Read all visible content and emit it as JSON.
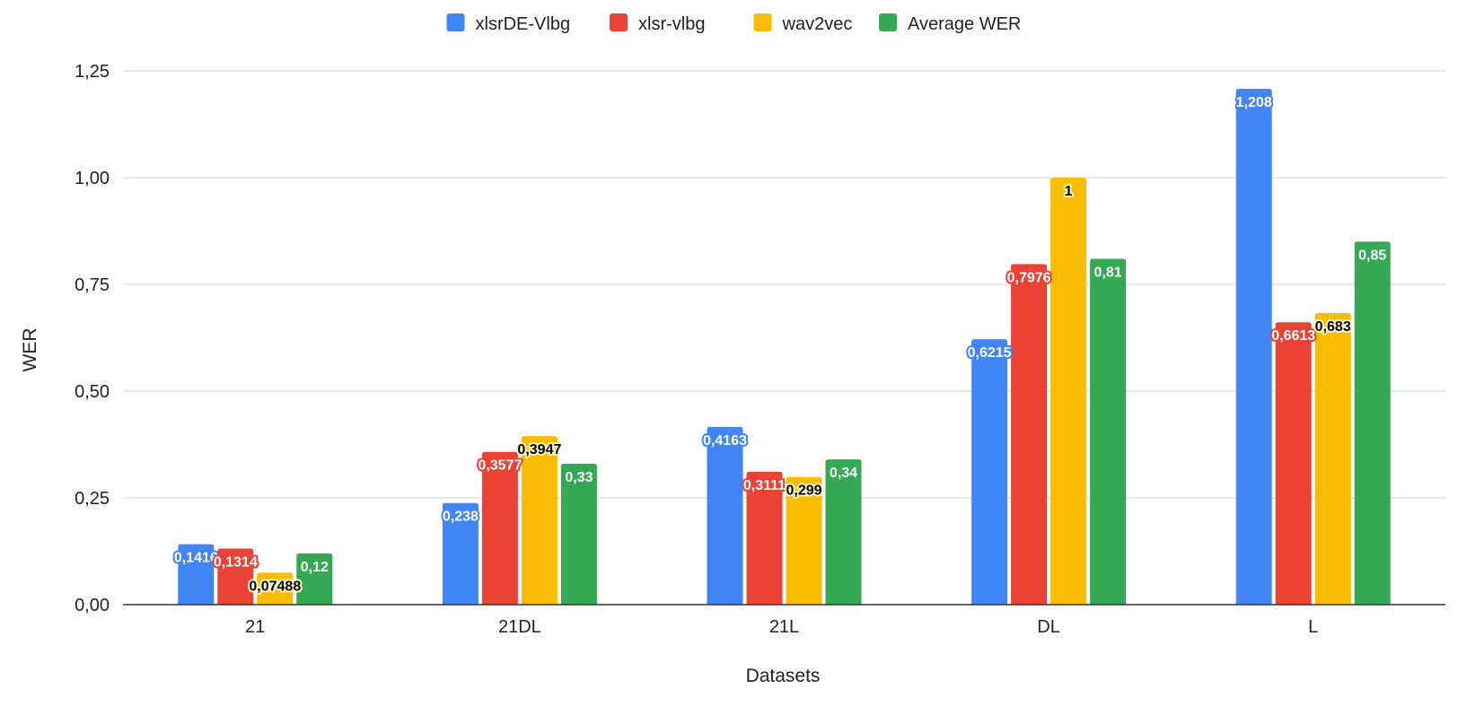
{
  "chart_data": {
    "type": "bar",
    "title": "",
    "xlabel": "Datasets",
    "ylabel": "WER",
    "ylim": [
      0,
      1.25
    ],
    "yticks": [
      0,
      0.25,
      0.5,
      0.75,
      1.0,
      1.25
    ],
    "ytick_labels": [
      "0,00",
      "0,25",
      "0,50",
      "0,75",
      "1,00",
      "1,25"
    ],
    "grid": true,
    "legend_position": "top-center",
    "categories": [
      "21",
      "21DL",
      "21L",
      "DL",
      "L"
    ],
    "series": [
      {
        "name": "xlsrDE-Vlbg",
        "color": "#4285f4",
        "label_color": "#ffffff",
        "values": [
          0.1416,
          0.238,
          0.4163,
          0.6215,
          1.208
        ],
        "labels": [
          "0,1416",
          "0,238",
          "0,4163",
          "0,6215",
          "1,208"
        ]
      },
      {
        "name": "xlsr-vlbg",
        "color": "#ea4335",
        "label_color": "#ffffff",
        "values": [
          0.1314,
          0.3577,
          0.3111,
          0.7976,
          0.6613
        ],
        "labels": [
          "0,1314",
          "0,3577",
          "0,3111",
          "0,7976",
          "0,6613"
        ]
      },
      {
        "name": "wav2vec",
        "color": "#fbbc04",
        "label_color": "#000000",
        "values": [
          0.07488,
          0.3947,
          0.299,
          1.0,
          0.683
        ],
        "labels": [
          "0,07488",
          "0,3947",
          "0,299",
          "1",
          "0,683"
        ]
      },
      {
        "name": "Average WER",
        "color": "#34a853",
        "label_color": "#ffffff",
        "values": [
          0.12,
          0.33,
          0.34,
          0.81,
          0.85
        ],
        "labels": [
          "0,12",
          "0,33",
          "0,34",
          "0,81",
          "0,85"
        ]
      }
    ]
  }
}
